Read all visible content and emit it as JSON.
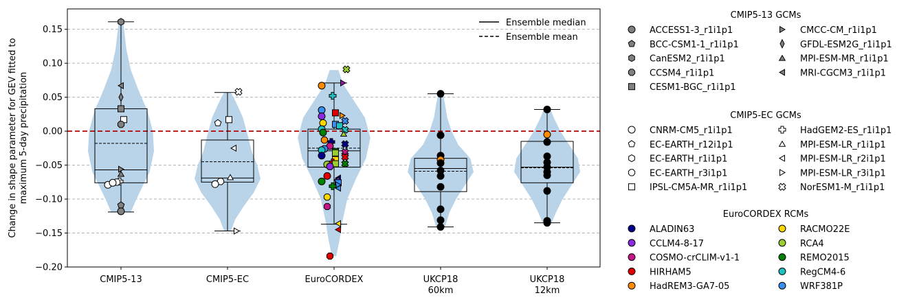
{
  "chart_data": {
    "type": "violin",
    "ylabel": "Change in shape parameter for GEV fitted to maximum 5-day precipitation",
    "ylabel_lines": [
      "Change in shape parameter for GEV fitted to",
      "maximum 5-day precipitation"
    ],
    "ylim": [
      -0.2,
      0.18
    ],
    "yticks": [
      0.15,
      0.1,
      0.05,
      0.0,
      -0.05,
      -0.1,
      -0.15,
      -0.2
    ],
    "ytick_labels": [
      "0.15",
      "0.10",
      "0.05",
      "0.00",
      "−0.05",
      "−0.10",
      "−0.15",
      "−0.20"
    ],
    "grid": "horizontal-dashed",
    "zero_line_color": "#b30000",
    "violin_color": "#b9d3e8",
    "groups": [
      {
        "label": [
          "CMIP5-13"
        ],
        "median": -0.057,
        "mean": -0.018,
        "q1": -0.076,
        "q3": 0.033,
        "whisker_low": -0.119,
        "whisker_high": 0.161,
        "violin": [
          [
            -0.119,
            0.09
          ],
          [
            -0.1,
            0.14
          ],
          [
            -0.08,
            0.2
          ],
          [
            -0.06,
            0.26
          ],
          [
            -0.03,
            0.3
          ],
          [
            0.0,
            0.29
          ],
          [
            0.03,
            0.24
          ],
          [
            0.06,
            0.16
          ],
          [
            0.09,
            0.09
          ],
          [
            0.12,
            0.05
          ],
          [
            0.161,
            0.02
          ]
        ],
        "points": [
          {
            "v": 0.161,
            "m": "hexagon",
            "c": "#808080"
          },
          {
            "v": 0.067,
            "m": "tri-left",
            "c": "#808080"
          },
          {
            "v": 0.05,
            "m": "diamond",
            "c": "#808080"
          },
          {
            "v": 0.033,
            "m": "square",
            "c": "#808080"
          },
          {
            "v": 0.017,
            "m": "square",
            "c": "#ffffff",
            "dx": 4
          },
          {
            "v": 0.01,
            "m": "octagon",
            "c": "#808080"
          },
          {
            "v": -0.056,
            "m": "tri-right",
            "c": "#808080"
          },
          {
            "v": -0.063,
            "m": "triangle",
            "c": "#808080"
          },
          {
            "v": -0.074,
            "m": "cross",
            "c": "#ffffff",
            "dx": -2
          },
          {
            "v": -0.075,
            "m": "octagon",
            "c": "#ffffff",
            "dx": -6
          },
          {
            "v": -0.079,
            "m": "circle",
            "c": "#ffffff",
            "dx": -19
          },
          {
            "v": -0.076,
            "m": "circle",
            "c": "#ffffff",
            "dx": -12
          },
          {
            "v": -0.109,
            "m": "pentagon",
            "c": "#808080"
          },
          {
            "v": -0.118,
            "m": "circle",
            "c": "#808080"
          }
        ]
      },
      {
        "label": [
          "CMIP5-EC"
        ],
        "median": -0.069,
        "mean": -0.045,
        "q1": -0.075,
        "q3": -0.013,
        "whisker_low": -0.147,
        "whisker_high": 0.057,
        "violin": [
          [
            -0.147,
            0.03
          ],
          [
            -0.13,
            0.07
          ],
          [
            -0.11,
            0.15
          ],
          [
            -0.09,
            0.24
          ],
          [
            -0.07,
            0.3
          ],
          [
            -0.05,
            0.27
          ],
          [
            -0.03,
            0.22
          ],
          [
            -0.01,
            0.19
          ],
          [
            0.02,
            0.14
          ],
          [
            0.045,
            0.07
          ],
          [
            0.057,
            0.03
          ]
        ],
        "points": [
          {
            "v": 0.058,
            "m": "xcross",
            "c": "#ffffff",
            "dx": 16
          },
          {
            "v": 0.017,
            "m": "square",
            "c": "#ffffff",
            "dx": 2
          },
          {
            "v": 0.012,
            "m": "pentagon",
            "c": "#ffffff",
            "dx": -14
          },
          {
            "v": -0.025,
            "m": "tri-left",
            "c": "#ffffff",
            "dx": 9
          },
          {
            "v": -0.068,
            "m": "triangle",
            "c": "#ffffff",
            "dx": 4
          },
          {
            "v": -0.074,
            "m": "octagon",
            "c": "#ffffff",
            "dx": -10
          },
          {
            "v": -0.078,
            "m": "circle",
            "c": "#ffffff",
            "dx": -18
          },
          {
            "v": -0.147,
            "m": "tri-right",
            "c": "#ffffff",
            "dx": 13
          }
        ]
      },
      {
        "label": [
          "EuroCORDEX"
        ],
        "median": -0.029,
        "mean": -0.025,
        "q1": -0.053,
        "q3": 0.003,
        "whisker_low": -0.137,
        "whisker_high": 0.071,
        "violin": [
          [
            -0.184,
            0.02
          ],
          [
            -0.16,
            0.05
          ],
          [
            -0.13,
            0.08
          ],
          [
            -0.1,
            0.12
          ],
          [
            -0.07,
            0.2
          ],
          [
            -0.04,
            0.29
          ],
          [
            -0.01,
            0.33
          ],
          [
            0.02,
            0.28
          ],
          [
            0.05,
            0.16
          ],
          [
            0.07,
            0.08
          ],
          [
            0.09,
            0.04
          ]
        ],
        "points": [
          {
            "v": 0.091,
            "m": "xcross",
            "c": "#9acd32",
            "dx": 18
          },
          {
            "v": 0.071,
            "m": "tri-right",
            "c": "#8b1a9b",
            "dx": 13
          },
          {
            "v": 0.067,
            "m": "circle",
            "c": "#ff8c00",
            "dx": -18
          },
          {
            "v": 0.052,
            "m": "cross",
            "c": "#20c0c0",
            "dx": -2
          },
          {
            "v": 0.031,
            "m": "circle",
            "c": "#3a8ef0",
            "dx": -18
          },
          {
            "v": 0.027,
            "m": "square",
            "c": "#e00000",
            "dx": 2
          },
          {
            "v": 0.023,
            "m": "tri-right",
            "c": "#ff8c00",
            "dx": 12
          },
          {
            "v": 0.022,
            "m": "circle",
            "c": "#8a2be2",
            "dx": -18
          },
          {
            "v": 0.015,
            "m": "xcross",
            "c": "#3a8ef0",
            "dx": 16
          },
          {
            "v": 0.012,
            "m": "circle",
            "c": "#ffd700",
            "dx": -16
          },
          {
            "v": 0.01,
            "m": "square",
            "c": "#3a8ef0",
            "dx": 2
          },
          {
            "v": 0.008,
            "m": "square",
            "c": "#20c0c0",
            "dx": 8
          },
          {
            "v": 0.002,
            "m": "xcross",
            "c": "#20c0c0",
            "dx": 16
          },
          {
            "v": 0.003,
            "m": "circle",
            "c": "#20c0c0",
            "dx": -18
          },
          {
            "v": -0.002,
            "m": "circle",
            "c": "#008000",
            "dx": -16
          },
          {
            "v": -0.004,
            "m": "triangle",
            "c": "#9acd32",
            "dx": 14
          },
          {
            "v": -0.013,
            "m": "octagon",
            "c": "#ff8c00",
            "dx": -14
          },
          {
            "v": -0.016,
            "m": "cross",
            "c": "#00008b",
            "dx": -4
          },
          {
            "v": -0.019,
            "m": "xcross",
            "c": "#00008b",
            "dx": 16
          },
          {
            "v": -0.022,
            "m": "circle",
            "c": "#c71585",
            "dx": -6
          },
          {
            "v": -0.026,
            "m": "circle",
            "c": "#3a8ef0",
            "dx": -14
          },
          {
            "v": -0.028,
            "m": "circle",
            "c": "#20c0c0",
            "dx": -18
          },
          {
            "v": -0.03,
            "m": "square",
            "c": "#008000",
            "dx": 2
          },
          {
            "v": -0.032,
            "m": "square",
            "c": "#9acd32",
            "dx": 2
          },
          {
            "v": -0.031,
            "m": "xcross",
            "c": "#c71585",
            "dx": 16
          },
          {
            "v": -0.036,
            "m": "circle",
            "c": "#00008b",
            "dx": -18
          },
          {
            "v": -0.038,
            "m": "xcross",
            "c": "#e00000",
            "dx": 16
          },
          {
            "v": -0.042,
            "m": "square",
            "c": "#ffd700",
            "dx": 2
          },
          {
            "v": -0.046,
            "m": "cross",
            "c": "#e00000",
            "dx": -2
          },
          {
            "v": -0.048,
            "m": "square",
            "c": "#9acd32",
            "dx": 2
          },
          {
            "v": -0.048,
            "m": "xcross",
            "c": "#008000",
            "dx": 16
          },
          {
            "v": -0.049,
            "m": "circle",
            "c": "#9acd32",
            "dx": -10
          },
          {
            "v": -0.052,
            "m": "circle",
            "c": "#8a2be2",
            "dx": -6
          },
          {
            "v": -0.066,
            "m": "circle",
            "c": "#e00000",
            "dx": -10
          },
          {
            "v": -0.069,
            "m": "tri-left",
            "c": "#00008b",
            "dx": 6
          },
          {
            "v": -0.072,
            "m": "tri-left",
            "c": "#8a2be2",
            "dx": 4
          },
          {
            "v": -0.074,
            "m": "circle",
            "c": "#008000",
            "dx": -18
          },
          {
            "v": -0.076,
            "m": "square",
            "c": "#3a8ef0",
            "dx": 6
          },
          {
            "v": -0.079,
            "m": "tri-right",
            "c": "#3a8ef0",
            "dx": 6
          },
          {
            "v": -0.081,
            "m": "cross",
            "c": "#008000",
            "dx": -2
          },
          {
            "v": -0.084,
            "m": "tri-left",
            "c": "#3a8ef0",
            "dx": 6
          },
          {
            "v": -0.097,
            "m": "octagon",
            "c": "#ffd700",
            "dx": -10
          },
          {
            "v": -0.111,
            "m": "octagon",
            "c": "#c71585",
            "dx": -10
          },
          {
            "v": -0.136,
            "m": "tri-left",
            "c": "#ffd700",
            "dx": 6
          },
          {
            "v": -0.145,
            "m": "tri-left",
            "c": "#e00000",
            "dx": 6
          },
          {
            "v": -0.184,
            "m": "octagon",
            "c": "#e00000",
            "dx": -6
          }
        ]
      },
      {
        "label": [
          "UKCP18",
          "60km"
        ],
        "median": -0.055,
        "mean": -0.059,
        "q1": -0.089,
        "q3": -0.04,
        "whisker_low": -0.141,
        "whisker_high": 0.055,
        "violin": [
          [
            -0.141,
            0.04
          ],
          [
            -0.12,
            0.08
          ],
          [
            -0.1,
            0.14
          ],
          [
            -0.08,
            0.22
          ],
          [
            -0.06,
            0.3
          ],
          [
            -0.04,
            0.27
          ],
          [
            -0.02,
            0.16
          ],
          [
            0.0,
            0.1
          ],
          [
            0.02,
            0.06
          ],
          [
            0.04,
            0.04
          ],
          [
            0.055,
            0.02
          ]
        ],
        "points": [
          {
            "v": 0.055,
            "m": "circle",
            "c": "#000000"
          },
          {
            "v": -0.006,
            "m": "circle",
            "c": "#000000"
          },
          {
            "v": -0.036,
            "m": "circle",
            "c": "#000000"
          },
          {
            "v": -0.042,
            "m": "circle",
            "c": "#ff8c00"
          },
          {
            "v": -0.047,
            "m": "circle",
            "c": "#000000"
          },
          {
            "v": -0.058,
            "m": "circle",
            "c": "#000000"
          },
          {
            "v": -0.066,
            "m": "circle",
            "c": "#000000"
          },
          {
            "v": -0.082,
            "m": "circle",
            "c": "#000000"
          },
          {
            "v": -0.115,
            "m": "circle",
            "c": "#000000"
          },
          {
            "v": -0.131,
            "m": "circle",
            "c": "#000000"
          },
          {
            "v": -0.141,
            "m": "circle",
            "c": "#000000"
          }
        ]
      },
      {
        "label": [
          "UKCP18",
          "12km"
        ],
        "median": -0.053,
        "mean": -0.054,
        "q1": -0.076,
        "q3": -0.015,
        "whisker_low": -0.135,
        "whisker_high": 0.032,
        "violin": [
          [
            -0.135,
            0.04
          ],
          [
            -0.12,
            0.08
          ],
          [
            -0.1,
            0.14
          ],
          [
            -0.08,
            0.22
          ],
          [
            -0.06,
            0.3
          ],
          [
            -0.04,
            0.28
          ],
          [
            -0.02,
            0.2
          ],
          [
            0.0,
            0.12
          ],
          [
            0.02,
            0.06
          ],
          [
            0.032,
            0.03
          ]
        ],
        "points": [
          {
            "v": 0.032,
            "m": "circle",
            "c": "#000000"
          },
          {
            "v": -0.005,
            "m": "circle",
            "c": "#ff8c00"
          },
          {
            "v": -0.016,
            "m": "circle",
            "c": "#000000"
          },
          {
            "v": -0.037,
            "m": "circle",
            "c": "#000000"
          },
          {
            "v": -0.046,
            "m": "circle",
            "c": "#000000"
          },
          {
            "v": -0.053,
            "m": "circle",
            "c": "#000000"
          },
          {
            "v": -0.06,
            "m": "circle",
            "c": "#000000"
          },
          {
            "v": -0.065,
            "m": "circle",
            "c": "#000000"
          },
          {
            "v": -0.088,
            "m": "circle",
            "c": "#000000"
          },
          {
            "v": -0.132,
            "m": "circle",
            "c": "#000000"
          },
          {
            "v": -0.135,
            "m": "circle",
            "c": "#000000"
          }
        ]
      }
    ],
    "line_legend": [
      {
        "label": "Ensemble median",
        "style": "solid"
      },
      {
        "label": "Ensemble mean",
        "style": "dashed"
      }
    ],
    "legend_sections": [
      {
        "title": "CMIP5-13 GCMs",
        "entries": [
          {
            "label": "ACCESS1-3_r1i1p1",
            "m": "circle",
            "c": "#808080"
          },
          {
            "label": "BCC-CSM1-1_r1i1p1",
            "m": "pentagon",
            "c": "#808080"
          },
          {
            "label": "CanESM2_r1i1p1",
            "m": "hexagon",
            "c": "#808080"
          },
          {
            "label": "CCSM4_r1i1p1",
            "m": "octagon",
            "c": "#808080"
          },
          {
            "label": "CESM1-BGC_r1i1p1",
            "m": "square",
            "c": "#808080"
          },
          {
            "label": "CMCC-CM_r1i1p1",
            "m": "tri-right",
            "c": "#808080"
          },
          {
            "label": "GFDL-ESM2G_r1i1p1",
            "m": "diamond",
            "c": "#808080"
          },
          {
            "label": "MPI-ESM-MR_r1i1p1",
            "m": "triangle",
            "c": "#808080"
          },
          {
            "label": "MRI-CGCM3_r1i1p1",
            "m": "tri-left",
            "c": "#808080"
          }
        ]
      },
      {
        "title": "CMIP5-EC GCMs",
        "entries": [
          {
            "label": "CNRM-CM5_r1i1p1",
            "m": "circle",
            "c": "#ffffff"
          },
          {
            "label": "EC-EARTH_r12i1p1",
            "m": "pentagon",
            "c": "#ffffff"
          },
          {
            "label": "EC-EARTH_r1i1p1",
            "m": "hexagon",
            "c": "#ffffff"
          },
          {
            "label": "EC-EARTH_r3i1p1",
            "m": "octagon",
            "c": "#ffffff"
          },
          {
            "label": "IPSL-CM5A-MR_r1i1p1",
            "m": "square",
            "c": "#ffffff"
          },
          {
            "label": "HadGEM2-ES_r1i1p1",
            "m": "cross",
            "c": "#ffffff"
          },
          {
            "label": "MPI-ESM-LR_r1i1p1",
            "m": "triangle",
            "c": "#ffffff"
          },
          {
            "label": "MPI-ESM-LR_r2i1p1",
            "m": "tri-left",
            "c": "#ffffff"
          },
          {
            "label": "MPI-ESM-LR_r3i1p1",
            "m": "tri-right",
            "c": "#ffffff"
          },
          {
            "label": "NorESM1-M_r1i1p1",
            "m": "xcross",
            "c": "#ffffff"
          }
        ]
      },
      {
        "title": "EuroCORDEX RCMs",
        "entries": [
          {
            "label": "ALADIN63",
            "m": "circle",
            "c": "#00008b"
          },
          {
            "label": "CCLM4-8-17",
            "m": "circle",
            "c": "#8a2be2"
          },
          {
            "label": "COSMO-crCLIM-v1-1",
            "m": "circle",
            "c": "#c71585"
          },
          {
            "label": "HIRHAM5",
            "m": "circle",
            "c": "#e00000"
          },
          {
            "label": "HadREM3-GA7-05",
            "m": "circle",
            "c": "#ff8c00"
          },
          {
            "label": "RACMO22E",
            "m": "circle",
            "c": "#ffd700"
          },
          {
            "label": "RCA4",
            "m": "circle",
            "c": "#9acd32"
          },
          {
            "label": "REMO2015",
            "m": "circle",
            "c": "#008000"
          },
          {
            "label": "RegCM4-6",
            "m": "circle",
            "c": "#20c0c0"
          },
          {
            "label": "WRF381P",
            "m": "circle",
            "c": "#3a8ef0"
          }
        ]
      }
    ]
  }
}
